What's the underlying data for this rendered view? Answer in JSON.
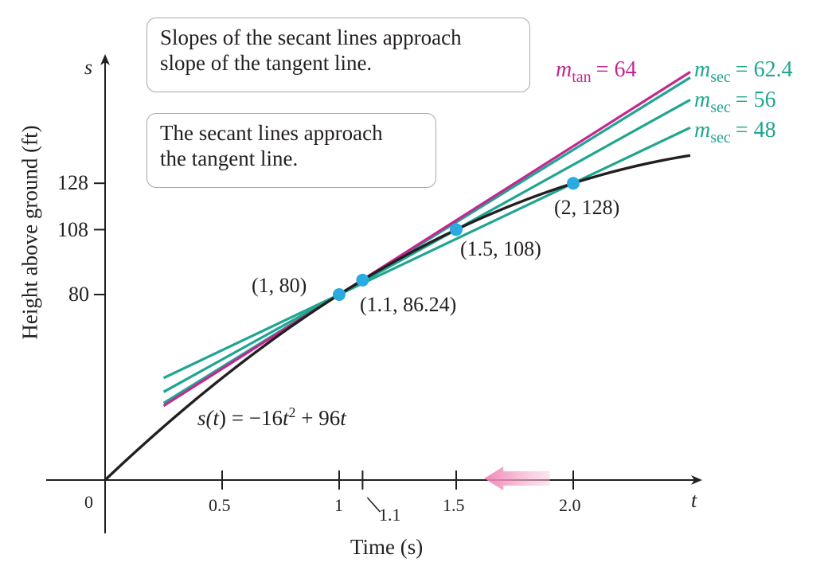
{
  "chart_data": {
    "type": "line",
    "title": "",
    "xlabel": "Time (s)",
    "ylabel": "Height above ground (ft)",
    "x_axis_letter": "t",
    "y_axis_letter": "s",
    "origin_label": "0",
    "xlim": [
      0,
      2.5
    ],
    "ylim": [
      0,
      162
    ],
    "x_ticks": [
      {
        "value": 0.5,
        "label": "0.5"
      },
      {
        "value": 1,
        "label": "1"
      },
      {
        "value": 1.1,
        "label": "1.1"
      },
      {
        "value": 1.5,
        "label": "1.5"
      },
      {
        "value": 2,
        "label": "2.0"
      }
    ],
    "y_ticks": [
      {
        "value": 80,
        "label": "80"
      },
      {
        "value": 108,
        "label": "108"
      },
      {
        "value": 128,
        "label": "128"
      }
    ],
    "curve": {
      "label_parts": [
        "s(",
        "t",
        ") = −16",
        "t",
        "2",
        " + 96",
        "t"
      ],
      "a": -16,
      "b": 96,
      "x_range": [
        0,
        2.5
      ],
      "color": "#231f20"
    },
    "series": [
      {
        "name": "m_tan = 64",
        "slope": 64,
        "through": [
          1,
          80
        ],
        "x_range": [
          0.25,
          2.5
        ],
        "color": "#c6268f"
      },
      {
        "name": "m_sec = 62.4",
        "slope": 62.4,
        "through": [
          1,
          80
        ],
        "x_range": [
          0.25,
          2.5
        ],
        "color": "#1fa590"
      },
      {
        "name": "m_sec = 56",
        "slope": 56,
        "through": [
          1,
          80
        ],
        "x_range": [
          0.25,
          2.5
        ],
        "color": "#1fa590"
      },
      {
        "name": "m_sec = 48",
        "slope": 48,
        "through": [
          1,
          80
        ],
        "x_range": [
          0.25,
          2.5
        ],
        "color": "#1fa590"
      }
    ],
    "points": [
      {
        "x": 1,
        "y": 80,
        "label": "(1, 80)"
      },
      {
        "x": 1.1,
        "y": 86.24,
        "label": "(1.1, 86.24)"
      },
      {
        "x": 1.5,
        "y": 108,
        "label": "(1.5, 108)"
      },
      {
        "x": 2,
        "y": 128,
        "label": "(2, 128)"
      }
    ],
    "slope_labels": [
      {
        "m": "m",
        "sub": "tan",
        "rest": "= 64",
        "color": "#c6268f"
      },
      {
        "m": "m",
        "sub": "sec",
        "rest": "= 62.4",
        "color": "#1fa590"
      },
      {
        "m": "m",
        "sub": "sec",
        "rest": "= 56",
        "color": "#1fa590"
      },
      {
        "m": "m",
        "sub": "sec",
        "rest": "= 48",
        "color": "#1fa590"
      }
    ],
    "annotations": [
      [
        "Slopes of the secant lines approach",
        "slope of the tangent line."
      ],
      [
        "The secant lines approach",
        "the tangent line."
      ]
    ],
    "point_color": "#29abe2",
    "arrow": {
      "direction": "left",
      "color": "#f3a6c8",
      "from_x": 1.9,
      "to_x": 1.62
    },
    "grid": false,
    "legend": "none"
  }
}
